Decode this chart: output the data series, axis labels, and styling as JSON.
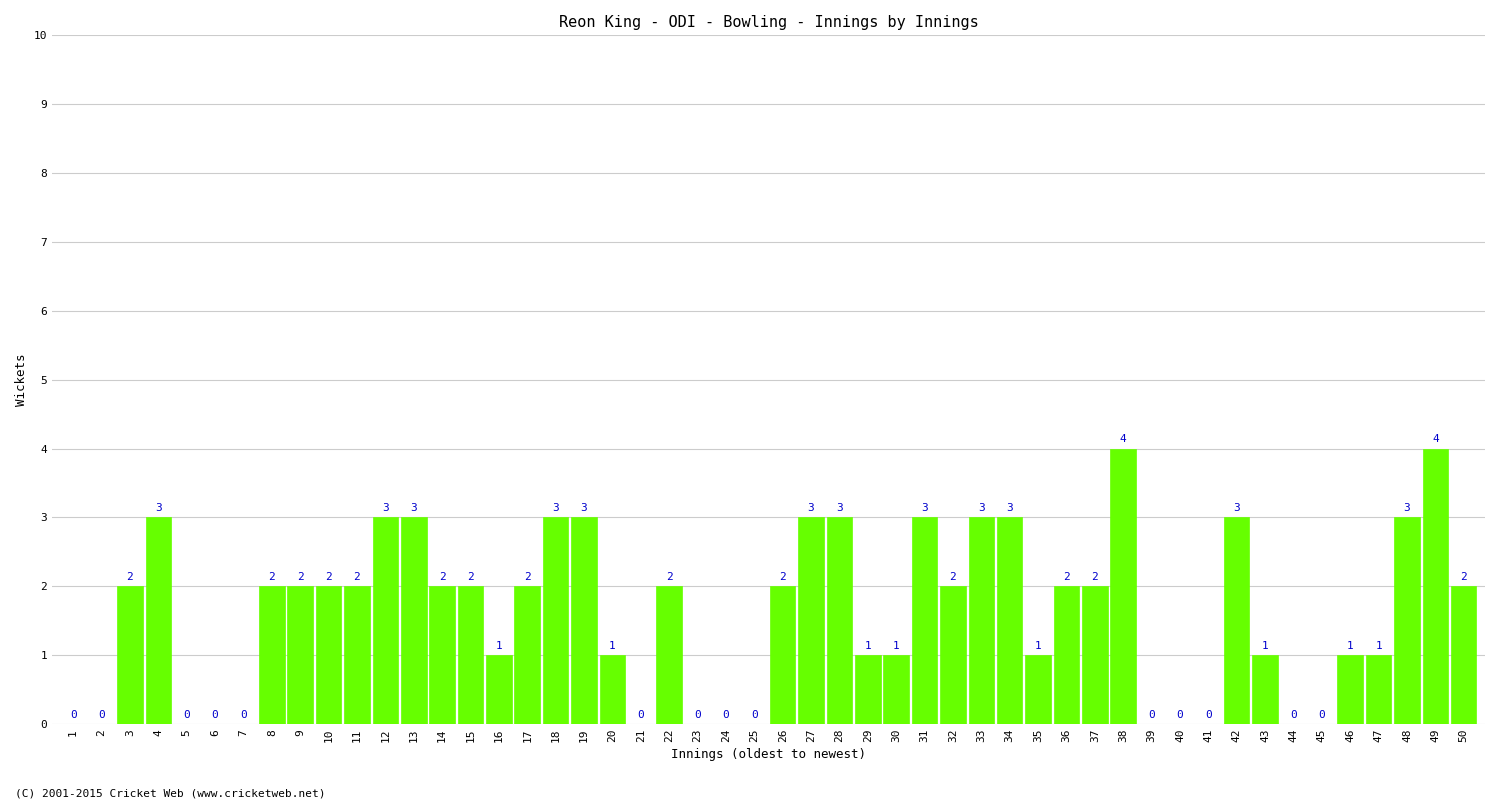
{
  "title": "Reon King - ODI - Bowling - Innings by Innings",
  "xlabel": "Innings (oldest to newest)",
  "ylabel": "Wickets",
  "ylim": [
    0,
    10
  ],
  "yticks": [
    0,
    1,
    2,
    3,
    4,
    5,
    6,
    7,
    8,
    9,
    10
  ],
  "bar_color": "#66ff00",
  "label_color": "#0000cc",
  "background_color": "#ffffff",
  "grid_color": "#cccccc",
  "copyright": "(C) 2001-2015 Cricket Web (www.cricketweb.net)",
  "categories": [
    1,
    2,
    3,
    4,
    5,
    6,
    7,
    8,
    9,
    10,
    11,
    12,
    13,
    14,
    15,
    16,
    17,
    18,
    19,
    20,
    21,
    22,
    23,
    24,
    25,
    26,
    27,
    28,
    29,
    30,
    31,
    32,
    33,
    34,
    35,
    36,
    37,
    38,
    39,
    40,
    41,
    42,
    43,
    44,
    45,
    46,
    47,
    48,
    49,
    50
  ],
  "values": [
    0,
    0,
    2,
    3,
    0,
    0,
    0,
    2,
    2,
    2,
    2,
    3,
    3,
    2,
    2,
    1,
    2,
    3,
    3,
    1,
    0,
    2,
    0,
    0,
    0,
    2,
    3,
    3,
    1,
    1,
    3,
    2,
    3,
    3,
    1,
    2,
    2,
    4,
    0,
    0,
    0,
    3,
    1,
    0,
    0,
    1,
    1,
    3,
    4,
    2
  ],
  "title_fontsize": 11,
  "axis_fontsize": 9,
  "label_fontsize": 8,
  "tick_fontsize": 8
}
